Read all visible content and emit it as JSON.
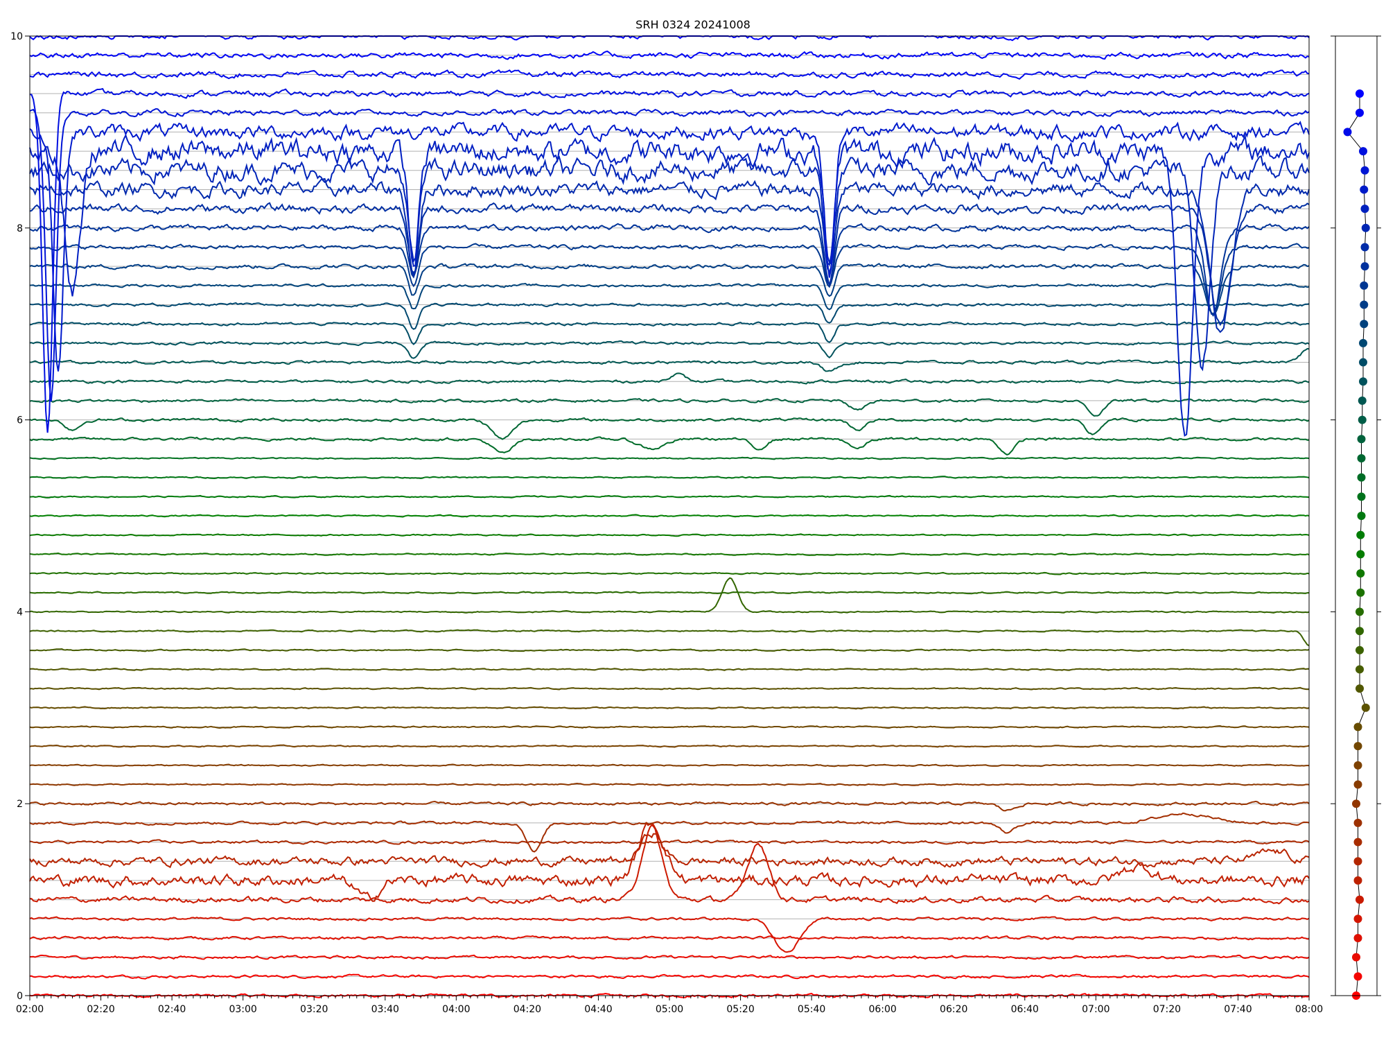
{
  "chart_data": [
    {
      "type": "line",
      "title": "SRH 0324 20241008",
      "xlabel": "",
      "ylabel": "",
      "x_range": [
        "02:00",
        "08:00"
      ],
      "ylim": [
        0,
        10
      ],
      "x_tick_labels": [
        "02:00",
        "02:20",
        "02:40",
        "03:00",
        "03:20",
        "03:40",
        "04:00",
        "04:20",
        "04:40",
        "05:00",
        "05:20",
        "05:40",
        "06:00",
        "06:20",
        "06:40",
        "07:00",
        "07:20",
        "07:40",
        "08:00"
      ],
      "y_tick_labels": [
        "0",
        "2",
        "4",
        "6",
        "8",
        "10"
      ],
      "y_ticks": [
        0,
        2,
        4,
        6,
        8,
        10
      ],
      "grid": "horizontal",
      "channel_count": 51,
      "channel_spacing": 0.2,
      "color_gradient": {
        "low": "#ff0000",
        "mid": "#008000",
        "high": "#0000ff"
      },
      "series": [
        {
          "base": 0.0,
          "noise": 0.01
        },
        {
          "base": 0.2,
          "noise": 0.01
        },
        {
          "base": 0.4,
          "noise": 0.01
        },
        {
          "base": 0.6,
          "noise": 0.01
        },
        {
          "base": 0.8,
          "noise": 0.01,
          "events": [
            {
              "t": "05:33",
              "amp": -0.35,
              "w": 5
            }
          ]
        },
        {
          "base": 1.0,
          "noise": 0.02,
          "events": [
            {
              "t": "04:55",
              "amp": 0.75,
              "w": 4
            },
            {
              "t": "05:25",
              "amp": 0.6,
              "w": 4
            }
          ]
        },
        {
          "base": 1.2,
          "noise": 0.04,
          "events": [
            {
              "t": "03:35",
              "amp": -0.2,
              "w": 4
            },
            {
              "t": "04:55",
              "amp": 0.6,
              "w": 5
            },
            {
              "t": "07:12",
              "amp": 0.15,
              "w": 6
            }
          ]
        },
        {
          "base": 1.4,
          "noise": 0.03,
          "events": [
            {
              "t": "04:55",
              "amp": 0.3,
              "w": 4
            },
            {
              "t": "07:50",
              "amp": 0.1,
              "w": 6
            }
          ]
        },
        {
          "base": 1.6,
          "noise": 0.01
        },
        {
          "base": 1.8,
          "noise": 0.01,
          "events": [
            {
              "t": "04:22",
              "amp": -0.3,
              "w": 3
            },
            {
              "t": "06:35",
              "amp": -0.1,
              "w": 3
            },
            {
              "t": "07:25",
              "amp": 0.1,
              "w": 10
            }
          ]
        },
        {
          "base": 2.0,
          "noise": 0.01,
          "events": [
            {
              "t": "06:35",
              "amp": -0.07,
              "w": 3
            }
          ]
        },
        {
          "base": 2.2,
          "noise": 0.005
        },
        {
          "base": 2.4,
          "noise": 0.005
        },
        {
          "base": 2.6,
          "noise": 0.005
        },
        {
          "base": 2.8,
          "noise": 0.005
        },
        {
          "base": 3.0,
          "noise": 0.005
        },
        {
          "base": 3.2,
          "noise": 0.005
        },
        {
          "base": 3.4,
          "noise": 0.005
        },
        {
          "base": 3.6,
          "noise": 0.005
        },
        {
          "base": 3.8,
          "noise": 0.005,
          "events": [
            {
              "t": "08:00",
              "amp": -0.15,
              "w": 2
            }
          ]
        },
        {
          "base": 4.0,
          "noise": 0.005,
          "events": [
            {
              "t": "05:17",
              "amp": 0.35,
              "w": 3
            }
          ]
        },
        {
          "base": 4.2,
          "noise": 0.005
        },
        {
          "base": 4.4,
          "noise": 0.005
        },
        {
          "base": 4.6,
          "noise": 0.005
        },
        {
          "base": 4.8,
          "noise": 0.005
        },
        {
          "base": 5.0,
          "noise": 0.005
        },
        {
          "base": 5.2,
          "noise": 0.005
        },
        {
          "base": 5.4,
          "noise": 0.005
        },
        {
          "base": 5.6,
          "noise": 0.005
        },
        {
          "base": 5.8,
          "noise": 0.01,
          "events": [
            {
              "t": "04:13",
              "amp": -0.15,
              "w": 4
            },
            {
              "t": "04:55",
              "amp": -0.1,
              "w": 5
            },
            {
              "t": "05:25",
              "amp": -0.1,
              "w": 3
            },
            {
              "t": "05:53",
              "amp": -0.1,
              "w": 3
            },
            {
              "t": "06:35",
              "amp": -0.15,
              "w": 3
            }
          ]
        },
        {
          "base": 6.0,
          "noise": 0.01,
          "events": [
            {
              "t": "02:12",
              "amp": -0.1,
              "w": 3
            },
            {
              "t": "04:13",
              "amp": -0.2,
              "w": 4
            },
            {
              "t": "05:53",
              "amp": -0.1,
              "w": 3
            },
            {
              "t": "06:59",
              "amp": -0.15,
              "w": 3
            }
          ]
        },
        {
          "base": 6.2,
          "noise": 0.01,
          "events": [
            {
              "t": "05:53",
              "amp": -0.1,
              "w": 3
            },
            {
              "t": "07:00",
              "amp": -0.15,
              "w": 3
            }
          ]
        },
        {
          "base": 6.4,
          "noise": 0.01,
          "events": [
            {
              "t": "05:02",
              "amp": 0.08,
              "w": 3
            }
          ]
        },
        {
          "base": 6.6,
          "noise": 0.01,
          "events": [
            {
              "t": "05:45",
              "amp": -0.1,
              "w": 3
            },
            {
              "t": "08:00",
              "amp": 0.15,
              "w": 3
            }
          ]
        },
        {
          "base": 6.8,
          "noise": 0.01,
          "events": [
            {
              "t": "03:48",
              "amp": -0.15,
              "w": 2
            },
            {
              "t": "05:45",
              "amp": -0.15,
              "w": 2
            }
          ]
        },
        {
          "base": 7.0,
          "noise": 0.01,
          "events": [
            {
              "t": "03:48",
              "amp": -0.2,
              "w": 2
            },
            {
              "t": "05:45",
              "amp": -0.2,
              "w": 2
            }
          ]
        },
        {
          "base": 7.2,
          "noise": 0.01,
          "events": [
            {
              "t": "03:48",
              "amp": -0.25,
              "w": 2
            },
            {
              "t": "05:45",
              "amp": -0.2,
              "w": 2
            }
          ]
        },
        {
          "base": 7.4,
          "noise": 0.01,
          "events": [
            {
              "t": "03:48",
              "amp": -0.25,
              "w": 2
            },
            {
              "t": "05:45",
              "amp": -0.25,
              "w": 2
            }
          ]
        },
        {
          "base": 7.6,
          "noise": 0.015,
          "events": [
            {
              "t": "03:48",
              "amp": -0.3,
              "w": 2
            },
            {
              "t": "05:45",
              "amp": -0.3,
              "w": 2
            },
            {
              "t": "07:33",
              "amp": -0.5,
              "w": 3
            }
          ]
        },
        {
          "base": 7.8,
          "noise": 0.015,
          "events": [
            {
              "t": "03:48",
              "amp": -0.4,
              "w": 2
            },
            {
              "t": "05:45",
              "amp": -0.4,
              "w": 2
            },
            {
              "t": "07:33",
              "amp": -0.7,
              "w": 3
            }
          ]
        },
        {
          "base": 8.0,
          "noise": 0.02,
          "events": [
            {
              "t": "03:48",
              "amp": -0.5,
              "w": 2
            },
            {
              "t": "05:45",
              "amp": -0.6,
              "w": 2
            },
            {
              "t": "07:33",
              "amp": -0.9,
              "w": 3
            }
          ]
        },
        {
          "base": 8.2,
          "noise": 0.03,
          "events": [
            {
              "t": "03:48",
              "amp": -0.7,
              "w": 2
            },
            {
              "t": "05:45",
              "amp": -0.8,
              "w": 2
            },
            {
              "t": "07:35",
              "amp": -1.2,
              "w": 4
            }
          ]
        },
        {
          "base": 8.4,
          "noise": 0.05,
          "events": [
            {
              "t": "03:48",
              "amp": -0.9,
              "w": 2
            },
            {
              "t": "05:45",
              "amp": -0.9,
              "w": 2
            },
            {
              "t": "07:35",
              "amp": -1.5,
              "w": 4
            }
          ]
        },
        {
          "base": 8.6,
          "noise": 0.07,
          "events": [
            {
              "t": "03:48",
              "amp": -1.0,
              "w": 2
            },
            {
              "t": "05:45",
              "amp": -1.0,
              "w": 2
            },
            {
              "t": "07:30",
              "amp": -2.0,
              "w": 3
            }
          ]
        },
        {
          "base": 8.8,
          "noise": 0.08,
          "events": [
            {
              "t": "02:12",
              "amp": -1.5,
              "w": 3
            },
            {
              "t": "03:48",
              "amp": -1.2,
              "w": 2
            },
            {
              "t": "05:45",
              "amp": -1.2,
              "w": 2
            },
            {
              "t": "07:25",
              "amp": -3.0,
              "w": 3
            }
          ]
        },
        {
          "base": 9.0,
          "noise": 0.05,
          "events": [
            {
              "t": "02:08",
              "amp": -2.5,
              "w": 2
            },
            {
              "t": "05:45",
              "amp": -1.5,
              "w": 2
            }
          ]
        },
        {
          "base": 9.2,
          "noise": 0.02,
          "events": [
            {
              "t": "02:06",
              "amp": -3.0,
              "w": 2
            }
          ]
        },
        {
          "base": 9.4,
          "noise": 0.02,
          "events": [
            {
              "t": "02:05",
              "amp": -3.5,
              "w": 2
            }
          ]
        },
        {
          "base": 9.6,
          "noise": 0.02
        },
        {
          "base": 9.8,
          "noise": 0.02
        },
        {
          "base": 10.0,
          "noise": 0.02
        }
      ]
    },
    {
      "type": "scatter",
      "title": "",
      "ylim": [
        0,
        10
      ],
      "points": [
        {
          "x": 0.0,
          "y": 0.0
        },
        {
          "x": 0.1,
          "y": 0.2
        },
        {
          "x": 0.0,
          "y": 0.4
        },
        {
          "x": 0.1,
          "y": 0.6
        },
        {
          "x": 0.1,
          "y": 0.8
        },
        {
          "x": 0.2,
          "y": 1.0
        },
        {
          "x": 0.1,
          "y": 1.2
        },
        {
          "x": 0.1,
          "y": 1.4
        },
        {
          "x": 0.1,
          "y": 1.6
        },
        {
          "x": 0.1,
          "y": 1.8
        },
        {
          "x": 0.0,
          "y": 2.0
        },
        {
          "x": 0.1,
          "y": 2.2
        },
        {
          "x": 0.1,
          "y": 2.4
        },
        {
          "x": 0.1,
          "y": 2.6
        },
        {
          "x": 0.1,
          "y": 2.8
        },
        {
          "x": 0.55,
          "y": 3.0
        },
        {
          "x": 0.2,
          "y": 3.2
        },
        {
          "x": 0.2,
          "y": 3.4
        },
        {
          "x": 0.2,
          "y": 3.6
        },
        {
          "x": 0.2,
          "y": 3.8
        },
        {
          "x": 0.2,
          "y": 4.0
        },
        {
          "x": 0.25,
          "y": 4.2
        },
        {
          "x": 0.25,
          "y": 4.4
        },
        {
          "x": 0.25,
          "y": 4.6
        },
        {
          "x": 0.25,
          "y": 4.8
        },
        {
          "x": 0.3,
          "y": 5.0
        },
        {
          "x": 0.3,
          "y": 5.2
        },
        {
          "x": 0.3,
          "y": 5.4
        },
        {
          "x": 0.3,
          "y": 5.6
        },
        {
          "x": 0.3,
          "y": 5.8
        },
        {
          "x": 0.35,
          "y": 6.0
        },
        {
          "x": 0.35,
          "y": 6.2
        },
        {
          "x": 0.4,
          "y": 6.4
        },
        {
          "x": 0.4,
          "y": 6.6
        },
        {
          "x": 0.4,
          "y": 6.8
        },
        {
          "x": 0.45,
          "y": 7.0
        },
        {
          "x": 0.45,
          "y": 7.2
        },
        {
          "x": 0.45,
          "y": 7.4
        },
        {
          "x": 0.5,
          "y": 7.6
        },
        {
          "x": 0.5,
          "y": 7.8
        },
        {
          "x": 0.55,
          "y": 8.0
        },
        {
          "x": 0.5,
          "y": 8.2
        },
        {
          "x": 0.45,
          "y": 8.4
        },
        {
          "x": 0.5,
          "y": 8.6
        },
        {
          "x": 0.4,
          "y": 8.8
        },
        {
          "x": -0.5,
          "y": 9.0
        },
        {
          "x": 0.2,
          "y": 9.2
        },
        {
          "x": 0.2,
          "y": 9.4
        }
      ]
    }
  ],
  "colors": {
    "grid": "#b0b0b0",
    "axis": "#000000",
    "connector": "#000000"
  }
}
